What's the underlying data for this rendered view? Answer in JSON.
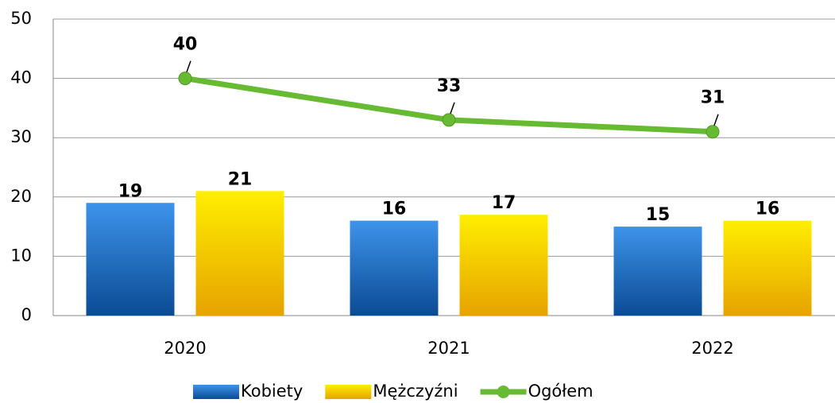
{
  "chart_data": {
    "type": "bar",
    "categories": [
      "2020",
      "2021",
      "2022"
    ],
    "series": [
      {
        "name": "Kobiety",
        "type": "bar",
        "color": "#1f6fc8",
        "values": [
          19,
          16,
          15
        ]
      },
      {
        "name": "Mężczyźni",
        "type": "bar",
        "color": "#ffd800",
        "values": [
          21,
          17,
          16
        ]
      },
      {
        "name": "Ogółem",
        "type": "line",
        "color": "#66bb33",
        "values": [
          40,
          33,
          31
        ]
      }
    ],
    "ylim": [
      0,
      50
    ],
    "yticks": [
      0,
      10,
      20,
      30,
      40,
      50
    ],
    "grid": true,
    "legend": "bottom"
  }
}
